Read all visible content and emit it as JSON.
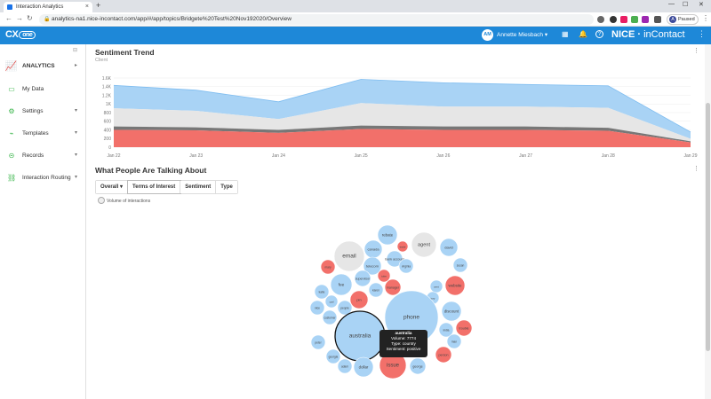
{
  "browser": {
    "tab_title": "Interaction Analytics",
    "new_tab": "+",
    "url": "analytics-na1.nice-incontact.com/app/#/app/topics/Bridgete%20Test%20Nov192020/Overview",
    "profile_initial": "A",
    "profile_status": "Paused",
    "back_glyph": "←",
    "forward_glyph": "→",
    "reload_glyph": "↻",
    "tab_close": "×",
    "win_minimize": "—",
    "win_maximize": "☐",
    "win_close": "✕",
    "lock_glyph": "🔒",
    "menu_glyph": "⋮"
  },
  "header": {
    "logo_text": "CX",
    "logo_suffix": "one",
    "user_initials": "AM",
    "user_name": "Annette Miesbach",
    "user_caret": "▾",
    "brand_main": "NICE",
    "brand_suffix": "inContact",
    "kebab": "⋮",
    "icons": [
      "grid-icon",
      "bell-icon",
      "help-icon"
    ],
    "icon_glyphs": [
      "▦",
      "🔔",
      "?"
    ]
  },
  "sidebar": {
    "collapse_glyph": "⊟",
    "items": [
      {
        "label": "ANALYTICS",
        "icon": "analytics-icon",
        "glyph": "📈",
        "chev": "▸"
      },
      {
        "label": "My Data",
        "icon": "screen-icon",
        "glyph": "▭",
        "chev": ""
      },
      {
        "label": "Settings",
        "icon": "gear-icon",
        "glyph": "⚙",
        "chev": "▾"
      },
      {
        "label": "Templates",
        "icon": "templates-icon",
        "glyph": "⌁",
        "chev": "▾"
      },
      {
        "label": "Records",
        "icon": "records-icon",
        "glyph": "⊝",
        "chev": "▾"
      },
      {
        "label": "Interaction Routing",
        "icon": "routing-icon",
        "glyph": "⛓",
        "chev": "▾"
      }
    ]
  },
  "sentiment": {
    "title": "Sentiment Trend",
    "subtitle": "Client",
    "kebab": "⋮"
  },
  "chart_data": {
    "type": "area",
    "title": "Sentiment Trend",
    "subtitle": "Client",
    "x": [
      "Jan 22",
      "Jan 23",
      "Jan 24",
      "Jan 25",
      "Jan 26",
      "Jan 27",
      "Jan 28",
      "Jan 29"
    ],
    "y_ticks": [
      "1.6K",
      "1.4K",
      "1.2K",
      "1K",
      "800",
      "600",
      "400",
      "200",
      "0"
    ],
    "ylim": [
      0,
      1600
    ],
    "stacked": true,
    "series": [
      {
        "color": "#f2706a",
        "values": [
          400,
          390,
          330,
          420,
          400,
          400,
          380,
          110
        ]
      },
      {
        "color": "#777777",
        "values": [
          80,
          70,
          70,
          80,
          80,
          80,
          70,
          25
        ]
      },
      {
        "color": "#e6e6e6",
        "values": [
          420,
          380,
          250,
          520,
          460,
          460,
          460,
          60
        ]
      },
      {
        "color": "#a9d3f5",
        "values": [
          530,
          480,
          400,
          550,
          550,
          510,
          510,
          155
        ]
      }
    ],
    "grid": true
  },
  "talking": {
    "title": "What People Are Talking About",
    "kebab": "⋮",
    "tabs": [
      "Overall ▾",
      "Terms of Interest",
      "Sentiment",
      "Type"
    ],
    "legend": "Volume of interactions"
  },
  "bubbles": [
    {
      "label": "rebate",
      "color": "#a9d3f5",
      "r": 11
    },
    {
      "label": "agent",
      "color": "#e6e6e6",
      "r": 14
    },
    {
      "label": "david",
      "color": "#a9d3f5",
      "r": 10
    },
    {
      "label": "email",
      "color": "#e6e6e6",
      "r": 17
    },
    {
      "label": "canada",
      "color": "#a9d3f5",
      "r": 10
    },
    {
      "label": "trade",
      "color": "#f2706a",
      "r": 6
    },
    {
      "label": "bank account",
      "color": "#a9d3f5",
      "r": 9
    },
    {
      "label": "susan",
      "color": "#a9d3f5",
      "r": 8
    },
    {
      "label": "mary",
      "color": "#f2706a",
      "r": 8
    },
    {
      "label": "telecom",
      "color": "#a9d3f5",
      "r": 10
    },
    {
      "label": "virginia",
      "color": "#a9d3f5",
      "r": 8
    },
    {
      "label": "supervisor",
      "color": "#a9d3f5",
      "r": 9
    },
    {
      "label": "tube",
      "color": "#f2706a",
      "r": 7
    },
    {
      "label": "fee",
      "color": "#a9d3f5",
      "r": 12
    },
    {
      "label": "karen",
      "color": "#a9d3f5",
      "r": 8
    },
    {
      "label": "manager",
      "color": "#f2706a",
      "r": 9
    },
    {
      "label": "cent",
      "color": "#a9d3f5",
      "r": 7
    },
    {
      "label": "website",
      "color": "#f2706a",
      "r": 11
    },
    {
      "label": "katie",
      "color": "#a9d3f5",
      "r": 8
    },
    {
      "label": "pin",
      "color": "#f2706a",
      "r": 10
    },
    {
      "label": "jury",
      "color": "#a9d3f5",
      "r": 7
    },
    {
      "label": "carl",
      "color": "#a9d3f5",
      "r": 7
    },
    {
      "label": "people",
      "color": "#a9d3f5",
      "r": 8
    },
    {
      "label": "nice",
      "color": "#a9d3f5",
      "r": 8
    },
    {
      "label": "customer",
      "color": "#a9d3f5",
      "r": 8
    },
    {
      "label": "phone",
      "color": "#a9d3f5",
      "r": 30
    },
    {
      "label": "discount",
      "color": "#a9d3f5",
      "r": 11
    },
    {
      "label": "australia",
      "color": "#a9d3f5",
      "r": 28
    },
    {
      "label": "india",
      "color": "#a9d3f5",
      "r": 8
    },
    {
      "label": "trouble",
      "color": "#f2706a",
      "r": 9
    },
    {
      "label": "peter",
      "color": "#a9d3f5",
      "r": 8
    },
    {
      "label": "man",
      "color": "#a9d3f5",
      "r": 8
    },
    {
      "label": "georgia",
      "color": "#a9d3f5",
      "r": 8
    },
    {
      "label": "person",
      "color": "#f2706a",
      "r": 9
    },
    {
      "label": "adam",
      "color": "#a9d3f5",
      "r": 8
    },
    {
      "label": "dollar",
      "color": "#a9d3f5",
      "r": 11
    },
    {
      "label": "issue",
      "color": "#f2706a",
      "r": 15
    },
    {
      "label": "george",
      "color": "#a9d3f5",
      "r": 9
    }
  ],
  "tooltip": {
    "title": "australia",
    "volume": "Volume: 7774",
    "type": "Type: country",
    "sentiment": "Sentiment: positive"
  }
}
